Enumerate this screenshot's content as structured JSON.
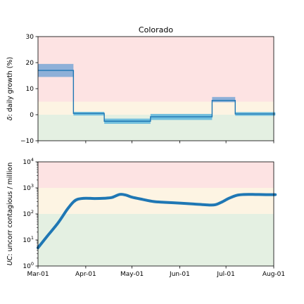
{
  "chart_data": [
    {
      "type": "line",
      "title": "Colorado",
      "xlabel": "",
      "ylabel_prefix": "δ",
      "ylabel_rest": ": daily growth (%)",
      "ylim": [
        -10,
        30
      ],
      "yticks": [
        -10,
        0,
        10,
        20,
        30
      ],
      "y_tick_labels": [
        "−10",
        "0",
        "10",
        "20",
        "30"
      ],
      "xlim_days": [
        0,
        153
      ],
      "xticks": [
        {
          "date": "2020-03-01",
          "label": "Mar-01"
        },
        {
          "date": "2020-04-01",
          "label": "Apr-01"
        },
        {
          "date": "2020-05-01",
          "label": "May-01"
        },
        {
          "date": "2020-06-01",
          "label": "Jun-01"
        },
        {
          "date": "2020-07-01",
          "label": "Jul-01"
        },
        {
          "date": "2020-08-01",
          "label": "Aug-01"
        }
      ],
      "bands": [
        {
          "name": "high",
          "from": 5,
          "to": 30,
          "color": "#fde3e3"
        },
        {
          "name": "medium",
          "from": 0,
          "to": 5,
          "color": "#fdf4e3"
        },
        {
          "name": "low",
          "from": -10,
          "to": 0,
          "color": "#e4f0e2"
        }
      ],
      "series": [
        {
          "color": "#1f77b4",
          "steps": [
            {
              "start": "2020-03-01",
              "end": "2020-03-24",
              "value": 17,
              "lo": 14.5,
              "hi": 19.5
            },
            {
              "start": "2020-03-24",
              "end": "2020-04-13",
              "value": 0.5,
              "lo": -0.3,
              "hi": 1.1
            },
            {
              "start": "2020-04-13",
              "end": "2020-05-13",
              "value": -2.5,
              "lo": -3.5,
              "hi": -1.5
            },
            {
              "start": "2020-05-13",
              "end": "2020-06-22",
              "value": -0.8,
              "lo": -2.0,
              "hi": 0.3
            },
            {
              "start": "2020-06-22",
              "end": "2020-07-07",
              "value": 5.5,
              "lo": 4.8,
              "hi": 6.8
            },
            {
              "start": "2020-07-07",
              "end": "2020-08-02",
              "value": 0.3,
              "lo": -0.4,
              "hi": 1.0
            }
          ]
        }
      ]
    },
    {
      "type": "line",
      "title": "",
      "xlabel": "",
      "ylabel_prefix": "UC",
      "ylabel_rest": ": uncorr contagious / million",
      "yscale": "log",
      "ylim": [
        1,
        10000
      ],
      "yticks": [
        {
          "value": 1,
          "base": "10",
          "exp": "0"
        },
        {
          "value": 10,
          "base": "10",
          "exp": "1"
        },
        {
          "value": 100,
          "base": "10",
          "exp": "2"
        },
        {
          "value": 1000,
          "base": "10",
          "exp": "3"
        },
        {
          "value": 10000,
          "base": "10",
          "exp": "4"
        }
      ],
      "xlim_days": [
        0,
        153
      ],
      "xticks": [
        {
          "date": "2020-03-01",
          "label": "Mar-01"
        },
        {
          "date": "2020-04-01",
          "label": "Apr-01"
        },
        {
          "date": "2020-05-01",
          "label": "May-01"
        },
        {
          "date": "2020-06-01",
          "label": "Jun-01"
        },
        {
          "date": "2020-07-01",
          "label": "Jul-01"
        },
        {
          "date": "2020-08-01",
          "label": "Aug-01"
        }
      ],
      "bands": [
        {
          "name": "high",
          "from": 1000,
          "to": 10000,
          "color": "#fde3e3"
        },
        {
          "name": "medium",
          "from": 100,
          "to": 1000,
          "color": "#fdf4e3"
        },
        {
          "name": "low",
          "from": 1,
          "to": 100,
          "color": "#e4f0e2"
        }
      ],
      "series": [
        {
          "color": "#1f77b4",
          "x": [
            "2020-03-01",
            "2020-03-07",
            "2020-03-14",
            "2020-03-20",
            "2020-03-24",
            "2020-03-27",
            "2020-04-01",
            "2020-04-07",
            "2020-04-13",
            "2020-04-18",
            "2020-04-23",
            "2020-04-27",
            "2020-05-01",
            "2020-05-08",
            "2020-05-15",
            "2020-05-22",
            "2020-06-01",
            "2020-06-10",
            "2020-06-20",
            "2020-06-24",
            "2020-06-28",
            "2020-07-03",
            "2020-07-08",
            "2020-07-13",
            "2020-07-20",
            "2020-07-27",
            "2020-08-02"
          ],
          "y": [
            5,
            14,
            45,
            150,
            290,
            370,
            400,
            390,
            400,
            430,
            560,
            530,
            440,
            360,
            300,
            280,
            260,
            240,
            220,
            225,
            280,
            400,
            520,
            560,
            560,
            550,
            550
          ]
        }
      ]
    }
  ]
}
